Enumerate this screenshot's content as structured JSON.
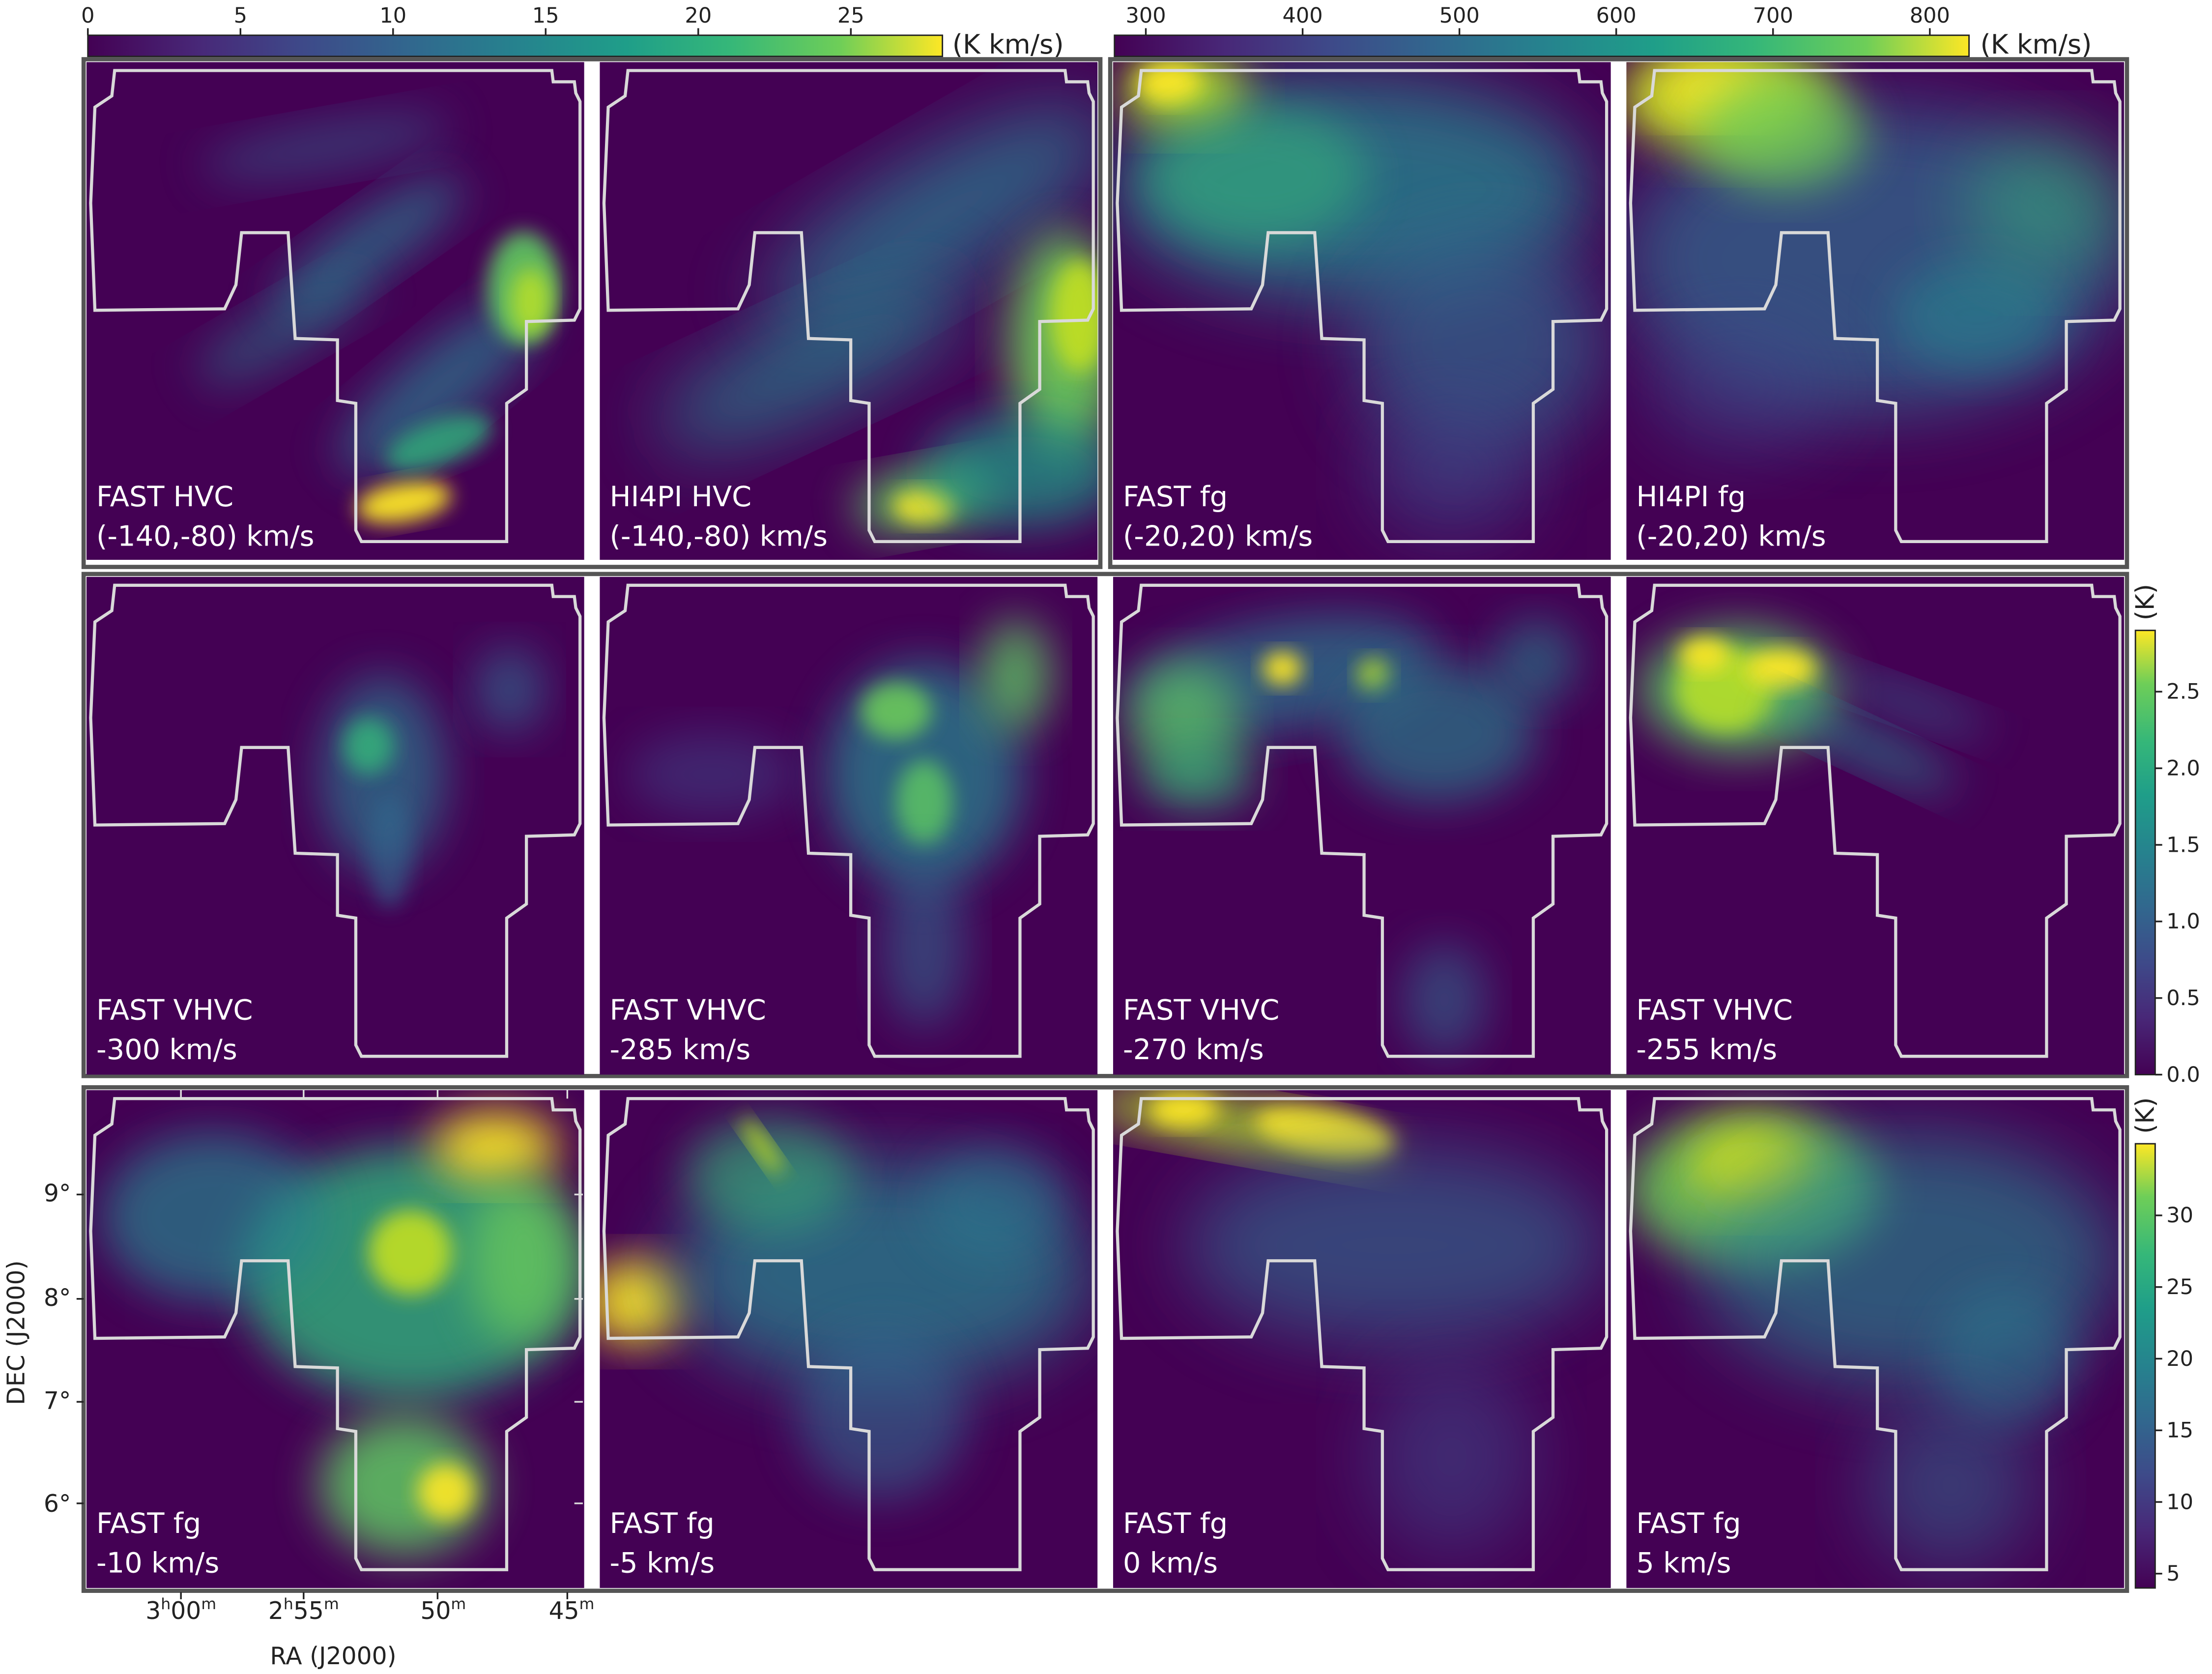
{
  "colorbars": {
    "hvc": {
      "unit": "(K km/s)",
      "range": [
        0,
        28
      ],
      "ticks": [
        "0",
        "5",
        "10",
        "15",
        "20",
        "25"
      ],
      "tick_values": [
        0,
        5,
        10,
        15,
        20,
        25
      ]
    },
    "fg_int": {
      "unit": "(K km/s)",
      "range": [
        280,
        825
      ],
      "ticks": [
        "300",
        "400",
        "500",
        "600",
        "700",
        "800"
      ],
      "tick_values": [
        300,
        400,
        500,
        600,
        700,
        800
      ]
    },
    "vhvc": {
      "unit": "(K)",
      "range": [
        0,
        2.9
      ],
      "ticks": [
        "0.0",
        "0.5",
        "1.0",
        "1.5",
        "2.0",
        "2.5"
      ],
      "tick_values": [
        0,
        0.5,
        1.0,
        1.5,
        2.0,
        2.5
      ]
    },
    "fg_chan": {
      "unit": "(K)",
      "range": [
        4,
        35
      ],
      "ticks": [
        "5",
        "10",
        "15",
        "20",
        "25",
        "30"
      ],
      "tick_values": [
        5,
        10,
        15,
        20,
        25,
        30
      ]
    }
  },
  "panels": [
    {
      "label1": "FAST HVC",
      "label2": "(-140,-80) km/s"
    },
    {
      "label1": "HI4PI HVC",
      "label2": "(-140,-80) km/s"
    },
    {
      "label1": "FAST fg",
      "label2": "(-20,20) km/s"
    },
    {
      "label1": "HI4PI fg",
      "label2": "(-20,20) km/s"
    },
    {
      "label1": "FAST VHVC",
      "label2": "-300 km/s"
    },
    {
      "label1": "FAST VHVC",
      "label2": "-285 km/s"
    },
    {
      "label1": "FAST VHVC",
      "label2": "-270 km/s"
    },
    {
      "label1": "FAST VHVC",
      "label2": "-255 km/s"
    },
    {
      "label1": "FAST fg",
      "label2": "-10 km/s"
    },
    {
      "label1": "FAST fg",
      "label2": "-5 km/s"
    },
    {
      "label1": "FAST fg",
      "label2": "0 km/s"
    },
    {
      "label1": "FAST fg",
      "label2": "5 km/s"
    }
  ],
  "axes": {
    "ylabel": "DEC (J2000)",
    "xlabel": "RA (J2000)",
    "dec_ticks": [
      "9°",
      "8°",
      "7°",
      "6°"
    ],
    "ra_ticks": [
      {
        "h": "3",
        "hu": "h",
        "m": "00",
        "mu": "m"
      },
      {
        "h": "2",
        "hu": "h",
        "m": "55",
        "mu": "m"
      },
      {
        "h": "",
        "hu": "",
        "m": "50",
        "mu": "m"
      },
      {
        "h": "",
        "hu": "",
        "m": "45",
        "mu": "m"
      }
    ]
  },
  "chart_data": {
    "type": "heatmap",
    "colormap": "viridis",
    "layout": "3 rows x 4 columns of HI intensity maps",
    "dec_range_deg": [
      5.4,
      9.9
    ],
    "ra_ticks_hms": [
      "3h00m",
      "2h55m",
      "50m",
      "45m"
    ],
    "maps": [
      {
        "survey": "FAST",
        "component": "HVC",
        "velocity_range_kms": [
          -140,
          -80
        ],
        "quantity": "integrated intensity",
        "unit": "K km/s",
        "peak": 27
      },
      {
        "survey": "HI4PI",
        "component": "HVC",
        "velocity_range_kms": [
          -140,
          -80
        ],
        "quantity": "integrated intensity",
        "unit": "K km/s",
        "peak": 27
      },
      {
        "survey": "FAST",
        "component": "fg",
        "velocity_range_kms": [
          -20,
          20
        ],
        "quantity": "integrated intensity",
        "unit": "K km/s",
        "peak": 820
      },
      {
        "survey": "HI4PI",
        "component": "fg",
        "velocity_range_kms": [
          -20,
          20
        ],
        "quantity": "integrated intensity",
        "unit": "K km/s",
        "peak": 820
      },
      {
        "survey": "FAST",
        "component": "VHVC",
        "velocity_kms": -300,
        "unit": "K",
        "peak": 1.4
      },
      {
        "survey": "FAST",
        "component": "VHVC",
        "velocity_kms": -285,
        "unit": "K",
        "peak": 2.2
      },
      {
        "survey": "FAST",
        "component": "VHVC",
        "velocity_kms": -270,
        "unit": "K",
        "peak": 2.8
      },
      {
        "survey": "FAST",
        "component": "VHVC",
        "velocity_kms": -255,
        "unit": "K",
        "peak": 2.8
      },
      {
        "survey": "FAST",
        "component": "fg",
        "velocity_kms": -10,
        "unit": "K",
        "peak": 34
      },
      {
        "survey": "FAST",
        "component": "fg",
        "velocity_kms": -5,
        "unit": "K",
        "peak": 34
      },
      {
        "survey": "FAST",
        "component": "fg",
        "velocity_kms": 0,
        "unit": "K",
        "peak": 34
      },
      {
        "survey": "FAST",
        "component": "fg",
        "velocity_kms": 5,
        "unit": "K",
        "peak": 34
      }
    ]
  }
}
